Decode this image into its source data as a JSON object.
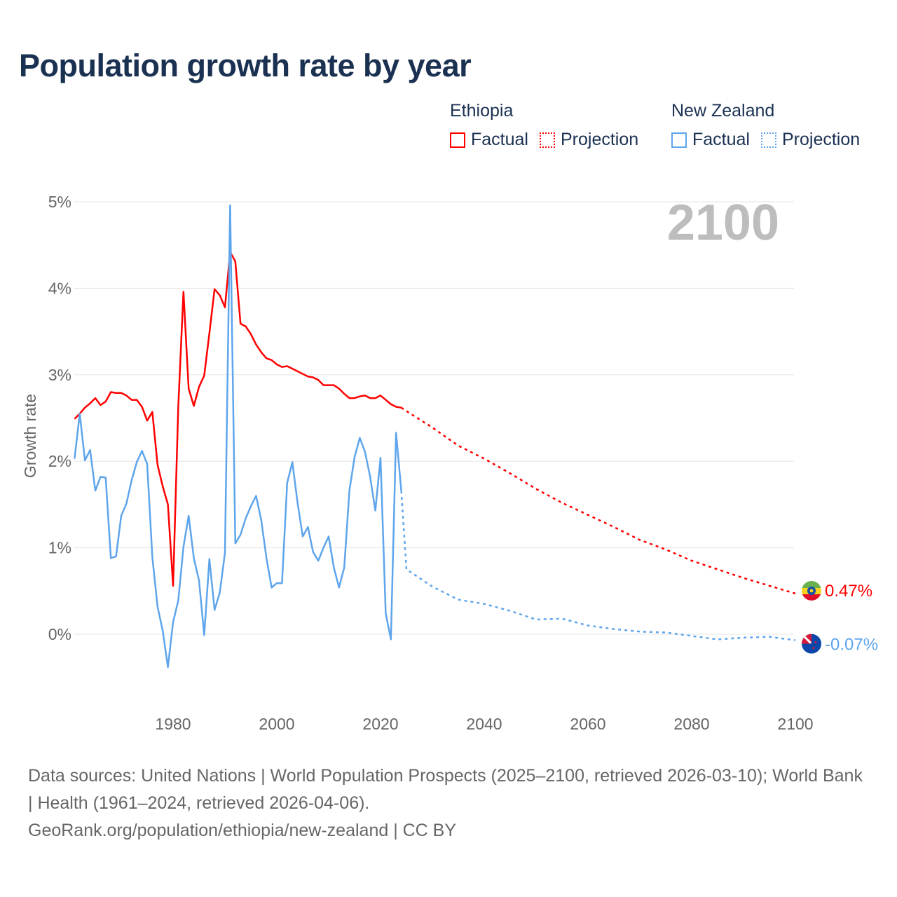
{
  "title": "Population growth rate by year",
  "legend": {
    "groups": [
      {
        "name": "Ethiopia",
        "factual": "Factual",
        "projection": "Projection",
        "color": "#ff0000"
      },
      {
        "name": "New Zealand",
        "factual": "Factual",
        "projection": "Projection",
        "color": "#5ea5ec"
      }
    ]
  },
  "footer": {
    "sources": "Data sources: United Nations | World Population Prospects (2025–2100, retrieved 2026-03-10); World Bank | Health (1961–2024, retrieved 2026-04-06).",
    "credit": "GeoRank.org/population/ethiopia/new-zealand | CC BY"
  },
  "chart_data": {
    "type": "line",
    "title": "Population growth rate by year",
    "xlabel": "",
    "ylabel": "Growth rate",
    "xlim": [
      1961,
      2100
    ],
    "ylim": [
      -0.6,
      5.1
    ],
    "x_ticks": [
      1980,
      2000,
      2020,
      2040,
      2060,
      2080,
      2100
    ],
    "y_ticks": [
      0,
      1,
      2,
      3,
      4,
      5
    ],
    "y_tick_labels": [
      "0%",
      "1%",
      "2%",
      "3%",
      "4%",
      "5%"
    ],
    "grid": true,
    "year_label": "2100",
    "series": [
      {
        "name": "Ethiopia",
        "color": "#ff0000",
        "end_label": "0.47%",
        "factual": {
          "start_year": 1961,
          "values": [
            2.49,
            2.55,
            2.62,
            2.67,
            2.73,
            2.65,
            2.69,
            2.8,
            2.79,
            2.79,
            2.76,
            2.71,
            2.71,
            2.63,
            2.47,
            2.57,
            1.96,
            1.71,
            1.5,
            0.56,
            2.63,
            3.96,
            2.84,
            2.64,
            2.86,
            2.99,
            3.48,
            3.99,
            3.92,
            3.78,
            4.42,
            4.31,
            3.59,
            3.56,
            3.47,
            3.35,
            3.26,
            3.19,
            3.17,
            3.12,
            3.09,
            3.1,
            3.07,
            3.04,
            3.01,
            2.98,
            2.97,
            2.94,
            2.88,
            2.88,
            2.88,
            2.84,
            2.78,
            2.73,
            2.73,
            2.75,
            2.76,
            2.73,
            2.73,
            2.76,
            2.71,
            2.66,
            2.63,
            2.62
          ]
        },
        "projection": {
          "years": [
            2024,
            2025,
            2030,
            2035,
            2040,
            2045,
            2050,
            2055,
            2060,
            2065,
            2070,
            2075,
            2080,
            2085,
            2090,
            2095,
            2100
          ],
          "values": [
            2.62,
            2.58,
            2.39,
            2.18,
            2.03,
            1.86,
            1.68,
            1.52,
            1.38,
            1.24,
            1.09,
            0.98,
            0.85,
            0.75,
            0.65,
            0.56,
            0.47
          ]
        }
      },
      {
        "name": "New Zealand",
        "color": "#5ea5ec",
        "end_label": "-0.07%",
        "factual": {
          "start_year": 1961,
          "values": [
            2.03,
            2.55,
            2.01,
            2.13,
            1.66,
            1.82,
            1.81,
            0.88,
            0.9,
            1.37,
            1.51,
            1.78,
            1.99,
            2.12,
            1.97,
            0.89,
            0.32,
            0.04,
            -0.38,
            0.14,
            0.39,
            1.01,
            1.37,
            0.88,
            0.62,
            -0.01,
            0.87,
            0.28,
            0.48,
            0.94,
            4.96,
            1.05,
            1.15,
            1.34,
            1.48,
            1.6,
            1.32,
            0.88,
            0.54,
            0.59,
            0.59,
            1.75,
            1.99,
            1.52,
            1.13,
            1.24,
            0.95,
            0.85,
            1.0,
            1.13,
            0.77,
            0.54,
            0.77,
            1.66,
            2.05,
            2.27,
            2.11,
            1.82,
            1.43,
            2.04,
            0.24,
            -0.06,
            2.33,
            1.66
          ]
        },
        "projection": {
          "years": [
            2024,
            2025,
            2030,
            2035,
            2040,
            2045,
            2050,
            2055,
            2060,
            2065,
            2070,
            2075,
            2080,
            2085,
            2090,
            2095,
            2100
          ],
          "values": [
            1.66,
            0.75,
            0.55,
            0.4,
            0.35,
            0.27,
            0.17,
            0.18,
            0.1,
            0.06,
            0.03,
            0.02,
            -0.02,
            -0.06,
            -0.04,
            -0.03,
            -0.07
          ]
        }
      }
    ]
  }
}
